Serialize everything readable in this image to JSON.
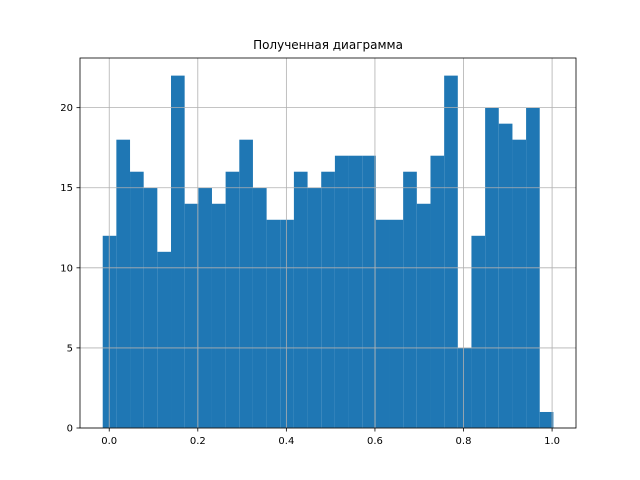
{
  "chart_data": {
    "type": "bar",
    "title": "Полученная диаграмма",
    "xlabel": "",
    "ylabel": "",
    "bin_edges": [
      -0.0147,
      0.0161,
      0.047,
      0.0778,
      0.1086,
      0.1395,
      0.1703,
      0.2012,
      0.232,
      0.2628,
      0.2937,
      0.3245,
      0.3554,
      0.3862,
      0.417,
      0.4479,
      0.4787,
      0.5096,
      0.5404,
      0.5712,
      0.6021,
      0.6329,
      0.6637,
      0.6946,
      0.7254,
      0.7563,
      0.7871,
      0.8179,
      0.8488,
      0.8796,
      0.9105,
      0.9413,
      0.9721,
      1.003
    ],
    "values": [
      12,
      18,
      16,
      15,
      11,
      22,
      14,
      15,
      14,
      16,
      18,
      15,
      13,
      13,
      16,
      15,
      16,
      17,
      17,
      17,
      13,
      13,
      16,
      14,
      17,
      22,
      5,
      12,
      20,
      19,
      18,
      20,
      1
    ],
    "xlim": [
      -0.066,
      1.054
    ],
    "ylim": [
      0,
      23.1
    ],
    "xticks": [
      0.0,
      0.2,
      0.4,
      0.6,
      0.8,
      1.0
    ],
    "xtick_labels": [
      "0.0",
      "0.2",
      "0.4",
      "0.6",
      "0.8",
      "1.0"
    ],
    "yticks": [
      0,
      5,
      10,
      15,
      20
    ],
    "ytick_labels": [
      "0",
      "5",
      "10",
      "15",
      "20"
    ],
    "grid": true,
    "bar_color": "#1f77b4",
    "grid_color": "#b0b0b0"
  }
}
